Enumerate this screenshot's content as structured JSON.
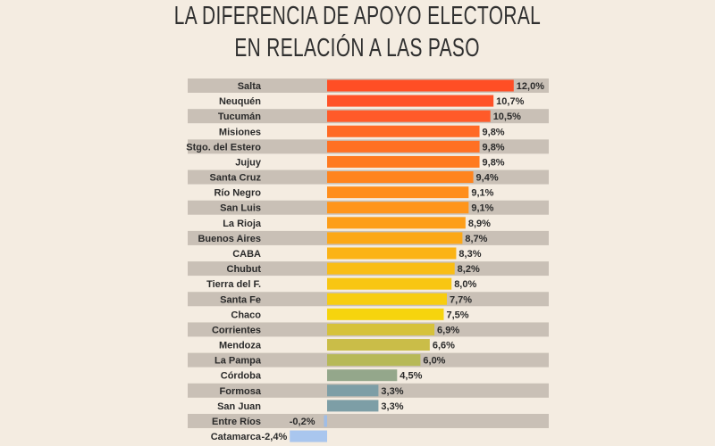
{
  "title_lines": [
    "LA DIFERENCIA DE APOYO ELECTORAL",
    "EN RELACIÓN A LAS PASO"
  ],
  "chart_data": {
    "type": "bar",
    "orientation": "horizontal",
    "title": "LA DIFERENCIA DE APOYO ELECTORAL EN RELACIÓN A LAS PASO",
    "categories": [
      "Salta",
      "Neuquén",
      "Tucumán",
      "Misiones",
      "Stgo. del Estero",
      "Jujuy",
      "Santa Cruz",
      "Río Negro",
      "San Luis",
      "La Rioja",
      "Buenos Aires",
      "CABA",
      "Chubut",
      "Tierra del F.",
      "Santa Fe",
      "Chaco",
      "Corrientes",
      "Mendoza",
      "La Pampa",
      "Córdoba",
      "Formosa",
      "San Juan",
      "Entre Ríos",
      "Catamarca"
    ],
    "values": [
      12.0,
      10.7,
      10.5,
      9.8,
      9.8,
      9.8,
      9.4,
      9.1,
      9.1,
      8.9,
      8.7,
      8.3,
      8.2,
      8.0,
      7.7,
      7.5,
      6.9,
      6.6,
      6.0,
      4.5,
      3.3,
      3.3,
      -0.2,
      -2.4
    ],
    "value_labels": [
      "12,0%",
      "10,7%",
      "10,5%",
      "9,8%",
      "9,8%",
      "9,8%",
      "9,4%",
      "9,1%",
      "9,1%",
      "8,9%",
      "8,7%",
      "8,3%",
      "8,2%",
      "8,0%",
      "7,7%",
      "7,5%",
      "6,9%",
      "6,6%",
      "6,0%",
      "4,5%",
      "3,3%",
      "3,3%",
      "-0,2%",
      "-2,4%"
    ],
    "colors": [
      "#ff4e25",
      "#ff5228",
      "#ff5a29",
      "#ff6a25",
      "#ff7023",
      "#ff7a20",
      "#ff841e",
      "#ff8e1c",
      "#ff951b",
      "#fd9e19",
      "#fca817",
      "#fbb316",
      "#f9bd14",
      "#f8c612",
      "#f7cd10",
      "#f6d40e",
      "#d6c23a",
      "#cabd48",
      "#b7b957",
      "#94a78b",
      "#7d9ea6",
      "#7d9ea6",
      "#9fbde6",
      "#a9c6ee"
    ],
    "highlight_label_color": "#f2583a",
    "stripe_color": "#c9c0b6",
    "background_color": "#f4ece1",
    "xlim": [
      -2.4,
      12.0
    ],
    "grid": false,
    "legend": "none"
  }
}
